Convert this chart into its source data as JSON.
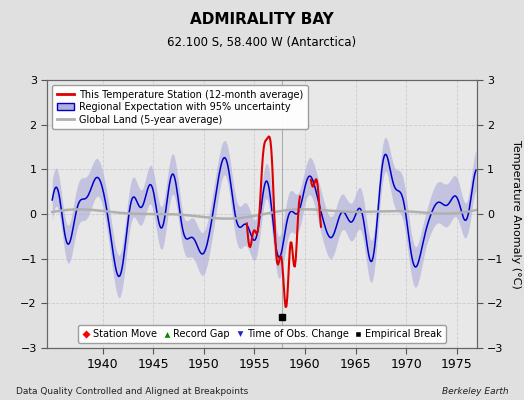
{
  "title": "ADMIRALITY BAY",
  "subtitle": "62.100 S, 58.400 W (Antarctica)",
  "ylabel": "Temperature Anomaly (°C)",
  "xlabel_bottom_left": "Data Quality Controlled and Aligned at Breakpoints",
  "xlabel_bottom_right": "Berkeley Earth",
  "ylim": [
    -3,
    3
  ],
  "xlim": [
    1934.5,
    1977.0
  ],
  "xticks": [
    1940,
    1945,
    1950,
    1955,
    1960,
    1965,
    1970,
    1975
  ],
  "yticks": [
    -3,
    -2,
    -1,
    0,
    1,
    2,
    3
  ],
  "bg_color": "#e0e0e0",
  "plot_bg_color": "#e8e8e8",
  "legend1_labels": [
    "This Temperature Station (12-month average)",
    "Regional Expectation with 95% uncertainty",
    "Global Land (5-year average)"
  ],
  "legend2_labels": [
    "Station Move",
    "Record Gap",
    "Time of Obs. Change",
    "Empirical Break"
  ],
  "red_line_color": "#dd0000",
  "blue_line_color": "#0000cc",
  "blue_fill_color": "#b0b0dd",
  "gray_line_color": "#b0b0b0",
  "empirical_break_year": 1957.75,
  "empirical_break_value": -2.3,
  "vertical_line_year": 1957.75
}
